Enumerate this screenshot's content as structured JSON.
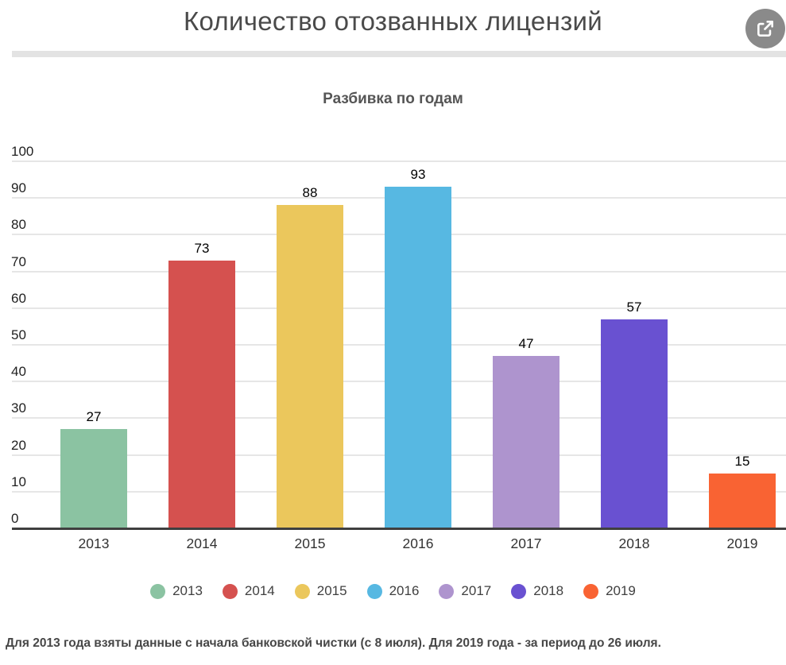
{
  "header": {
    "title": "Количество отозванных лицензий",
    "share_icon": "share-export-icon"
  },
  "subtitle": "Разбивка по годам",
  "chart_data": {
    "type": "bar",
    "title": "Разбивка по годам",
    "categories": [
      "2013",
      "2014",
      "2015",
      "2016",
      "2017",
      "2018",
      "2019"
    ],
    "values": [
      27,
      73,
      88,
      93,
      47,
      57,
      15
    ],
    "colors": [
      "#8BC3A2",
      "#D5514F",
      "#EBC75C",
      "#57B8E2",
      "#AE94CE",
      "#6951D1",
      "#F96333"
    ],
    "xlabel": "",
    "ylabel": "",
    "ylim": [
      0,
      100
    ],
    "ytick_step": 10,
    "yticks": [
      0,
      10,
      20,
      30,
      40,
      50,
      60,
      70,
      80,
      90,
      100
    ],
    "grid": true,
    "value_labels": true,
    "legend_position": "bottom"
  },
  "footer": {
    "note": "Для 2013 года взяты данные с начала банковской чистки (с 8 июля). Для 2019 года - за период до 26 июля."
  }
}
